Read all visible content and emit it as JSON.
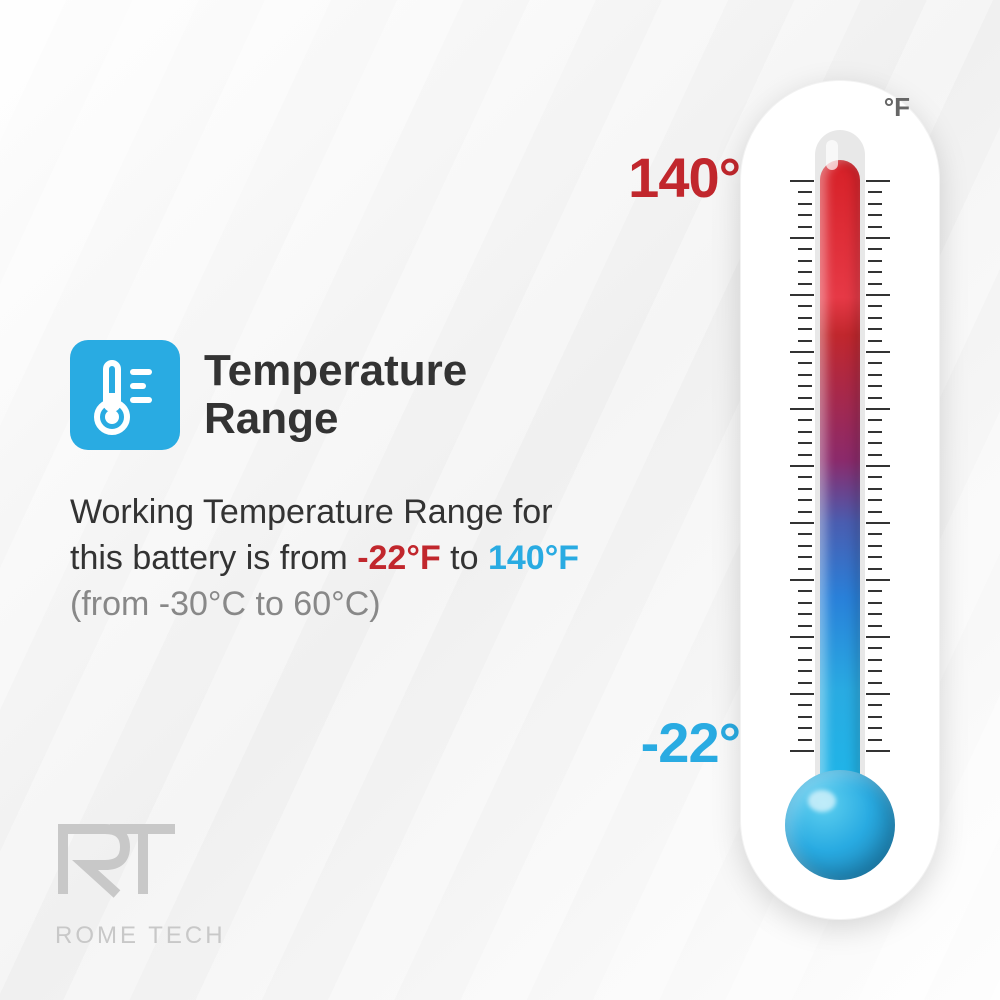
{
  "title": "Temperature Range",
  "description": {
    "prefix": "Working Temperature Range for this battery is from ",
    "low_temp": "-22°F",
    "mid": " to ",
    "high_temp": "140°F",
    "celsius": "(from -30°C to 60°C)"
  },
  "thermometer": {
    "unit": "°F",
    "high_label": "140°",
    "low_label": "-22°",
    "high_color": "#c1272d",
    "low_color": "#29abe2",
    "gradient_top": "#d62027",
    "gradient_bottom": "#29abe2",
    "body_color": "#ffffff"
  },
  "icon": {
    "bg_color": "#29abe2",
    "fg_color": "#ffffff"
  },
  "logo": {
    "mark": "RT",
    "name": "ROME TECH",
    "color": "#c8c8c8"
  },
  "background_color": "#f5f5f5"
}
